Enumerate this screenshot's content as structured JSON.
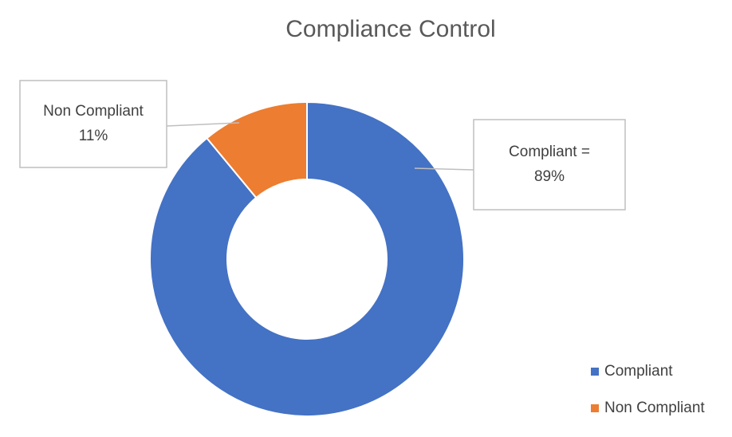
{
  "chart_data": {
    "type": "donut",
    "title": "Compliance Control",
    "categories": [
      "Compliant",
      "Non Compliant"
    ],
    "values": [
      89,
      11
    ],
    "value_labels": [
      [
        "Compliant =",
        "89%"
      ],
      [
        "Non Compliant",
        "11%"
      ]
    ],
    "colors": [
      "#4472c4",
      "#ed7d31"
    ],
    "legend": "bottom-right"
  }
}
